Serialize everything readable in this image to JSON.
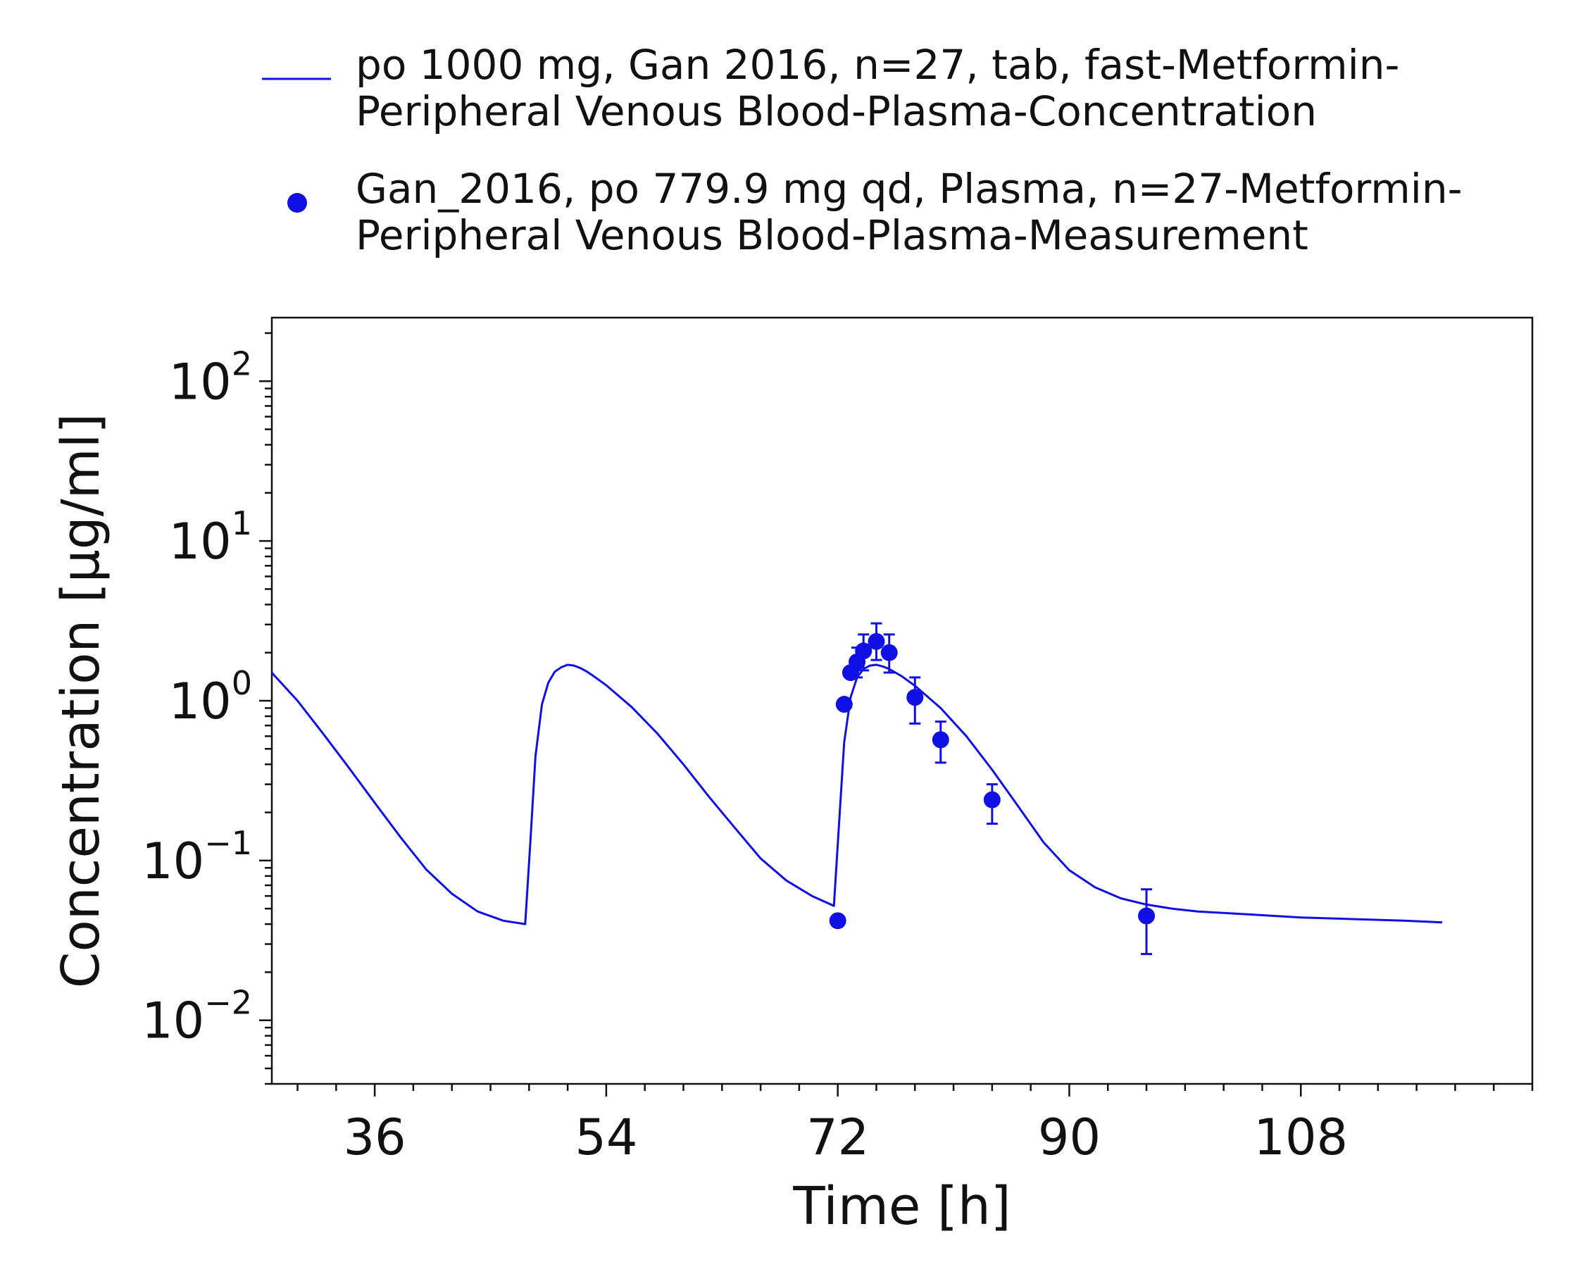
{
  "chart_data": {
    "type": "line",
    "title": "",
    "xlabel": "Time [h]",
    "ylabel": "Concentration [µg/ml]",
    "xscale": "linear",
    "yscale": "log",
    "xlim": [
      28,
      126
    ],
    "ylim": [
      0.004,
      250
    ],
    "xticks": [
      36,
      54,
      72,
      90,
      108
    ],
    "x_tick_labels": [
      "36",
      "54",
      "72",
      "90",
      "108"
    ],
    "yticks": [
      0.01,
      0.1,
      1,
      10,
      100
    ],
    "y_tick_labels": [
      {
        "base": "10",
        "exp": "−2"
      },
      {
        "base": "10",
        "exp": "−1"
      },
      {
        "base": "10",
        "exp": "0"
      },
      {
        "base": "10",
        "exp": "1"
      },
      {
        "base": "10",
        "exp": "2"
      }
    ],
    "grid": false,
    "legend_position": "top",
    "series": [
      {
        "name": "po 1000 mg, Gan 2016, n=27, tab, fast-Metformin-Peripheral Venous Blood-Plasma-Concentration",
        "name_lines": [
          "po 1000 mg, Gan 2016, n=27, tab, fast-Metformin-",
          "Peripheral Venous Blood-Plasma-Concentration"
        ],
        "kind": "line",
        "color": "#1010e6",
        "x": [
          28,
          30,
          32,
          34,
          36,
          38,
          40,
          42,
          44,
          46,
          47.7,
          48.1,
          48.5,
          49,
          49.5,
          50,
          50.5,
          51,
          51.5,
          52,
          52.5,
          53,
          54,
          56,
          58,
          60,
          62,
          64,
          66,
          68,
          70,
          71.7,
          72.1,
          72.5,
          73,
          73.5,
          74,
          74.5,
          75,
          75.5,
          76,
          77,
          78,
          80,
          82,
          84,
          86,
          88,
          90,
          92,
          94,
          96,
          98,
          100,
          104,
          108,
          112,
          116,
          119
        ],
        "y": [
          1.5,
          1.0,
          0.62,
          0.38,
          0.23,
          0.14,
          0.088,
          0.062,
          0.048,
          0.042,
          0.04,
          0.13,
          0.45,
          0.95,
          1.3,
          1.52,
          1.62,
          1.68,
          1.66,
          1.6,
          1.52,
          1.43,
          1.25,
          0.91,
          0.62,
          0.4,
          0.25,
          0.16,
          0.103,
          0.075,
          0.06,
          0.052,
          0.17,
          0.55,
          1.05,
          1.4,
          1.58,
          1.66,
          1.68,
          1.64,
          1.58,
          1.42,
          1.24,
          0.9,
          0.6,
          0.37,
          0.22,
          0.13,
          0.087,
          0.068,
          0.058,
          0.053,
          0.05,
          0.048,
          0.046,
          0.044,
          0.043,
          0.042,
          0.041
        ]
      },
      {
        "name": "Gan_2016, po 779.9 mg qd, Plasma, n=27-Metformin-Peripheral Venous Blood-Plasma-Measurement",
        "name_lines": [
          "Gan_2016, po 779.9 mg qd, Plasma, n=27-Metformin-",
          "Peripheral Venous Blood-Plasma-Measurement"
        ],
        "kind": "scatter",
        "color": "#1010e6",
        "x": [
          72.0,
          72.5,
          73.0,
          73.5,
          74.0,
          75.0,
          76.0,
          78.0,
          80.0,
          84.0,
          96.0
        ],
        "y": [
          0.042,
          0.95,
          1.5,
          1.75,
          2.05,
          2.35,
          2.0,
          1.05,
          0.57,
          0.24,
          0.045
        ],
        "y_err_low": [
          null,
          null,
          null,
          1.4,
          1.55,
          1.8,
          1.5,
          0.72,
          0.41,
          0.17,
          0.026
        ],
        "y_err_high": [
          null,
          null,
          null,
          2.15,
          2.6,
          3.05,
          2.6,
          1.4,
          0.74,
          0.3,
          0.066
        ]
      }
    ]
  }
}
